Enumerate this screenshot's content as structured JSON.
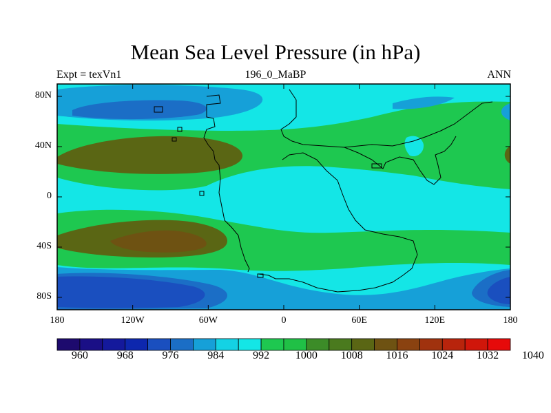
{
  "title": "Mean Sea Level Pressure (in hPa)",
  "subtitle_left": "Expt = texVn1",
  "subtitle_center": "196_0_MaBP",
  "subtitle_right": "ANN",
  "y_ticks": [
    "80N",
    "40N",
    "0",
    "40S",
    "80S"
  ],
  "x_ticks": [
    "180",
    "120W",
    "60W",
    "0",
    "60E",
    "120E",
    "180"
  ],
  "colorbar": {
    "colors": [
      "#1d0a6e",
      "#1a0f86",
      "#14199c",
      "#0d27ae",
      "#1a4fbf",
      "#1b6ec6",
      "#16a0d8",
      "#14d2e4",
      "#14e6e6",
      "#1ec850",
      "#20c046",
      "#3c8c28",
      "#4a7a1e",
      "#5a6614",
      "#6e5212",
      "#8a4210",
      "#a0320e",
      "#b8240c",
      "#d0160a",
      "#e60a0a"
    ],
    "labels": [
      "960",
      "968",
      "976",
      "984",
      "992",
      "1000",
      "1008",
      "1016",
      "1024",
      "1032",
      "1040"
    ]
  },
  "fills": {
    "low": "#1a4fbf",
    "mid_low": "#1b6ec6",
    "blue_light": "#16a0d8",
    "cyan": "#14e6e6",
    "green": "#1ec850",
    "olive": "#5a6614",
    "brown": "#6e5212"
  }
}
